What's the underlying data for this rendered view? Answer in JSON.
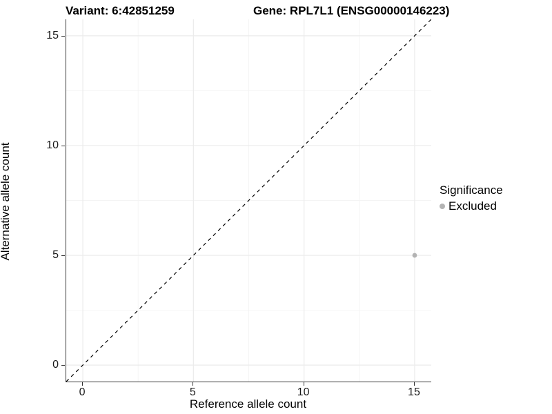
{
  "chart_data": {
    "type": "scatter",
    "title_left": "Variant: 6:42851259",
    "title_right": "Gene: RPL7L1 (ENSG00000146223)",
    "xlabel": "Reference allele count",
    "ylabel": "Alternative allele count",
    "xlim": [
      -0.75,
      15.75
    ],
    "ylim": [
      -0.75,
      15.75
    ],
    "x_ticks": [
      0,
      5,
      10,
      15
    ],
    "y_ticks": [
      0,
      5,
      10,
      15
    ],
    "x_minor_ticks": [
      2.5,
      7.5,
      12.5
    ],
    "y_minor_ticks": [
      2.5,
      7.5,
      12.5
    ],
    "grid": true,
    "identity_line": {
      "slope": 1,
      "intercept": 0,
      "style": "dashed",
      "color": "#000000"
    },
    "series": [
      {
        "name": "Excluded",
        "color": "#b3b3b3",
        "point_radius": 3.4,
        "points": [
          {
            "x": 15,
            "y": 5
          }
        ]
      }
    ],
    "legend": {
      "title": "Significance",
      "position": "right",
      "items": [
        {
          "label": "Excluded",
          "color": "#b3b3b3"
        }
      ]
    },
    "colors": {
      "background": "#ffffff",
      "axis_line": "#333333",
      "grid_major": "#ebebeb",
      "grid_minor": "#f4f4f4",
      "tick_text": "#1a1a1a"
    }
  }
}
